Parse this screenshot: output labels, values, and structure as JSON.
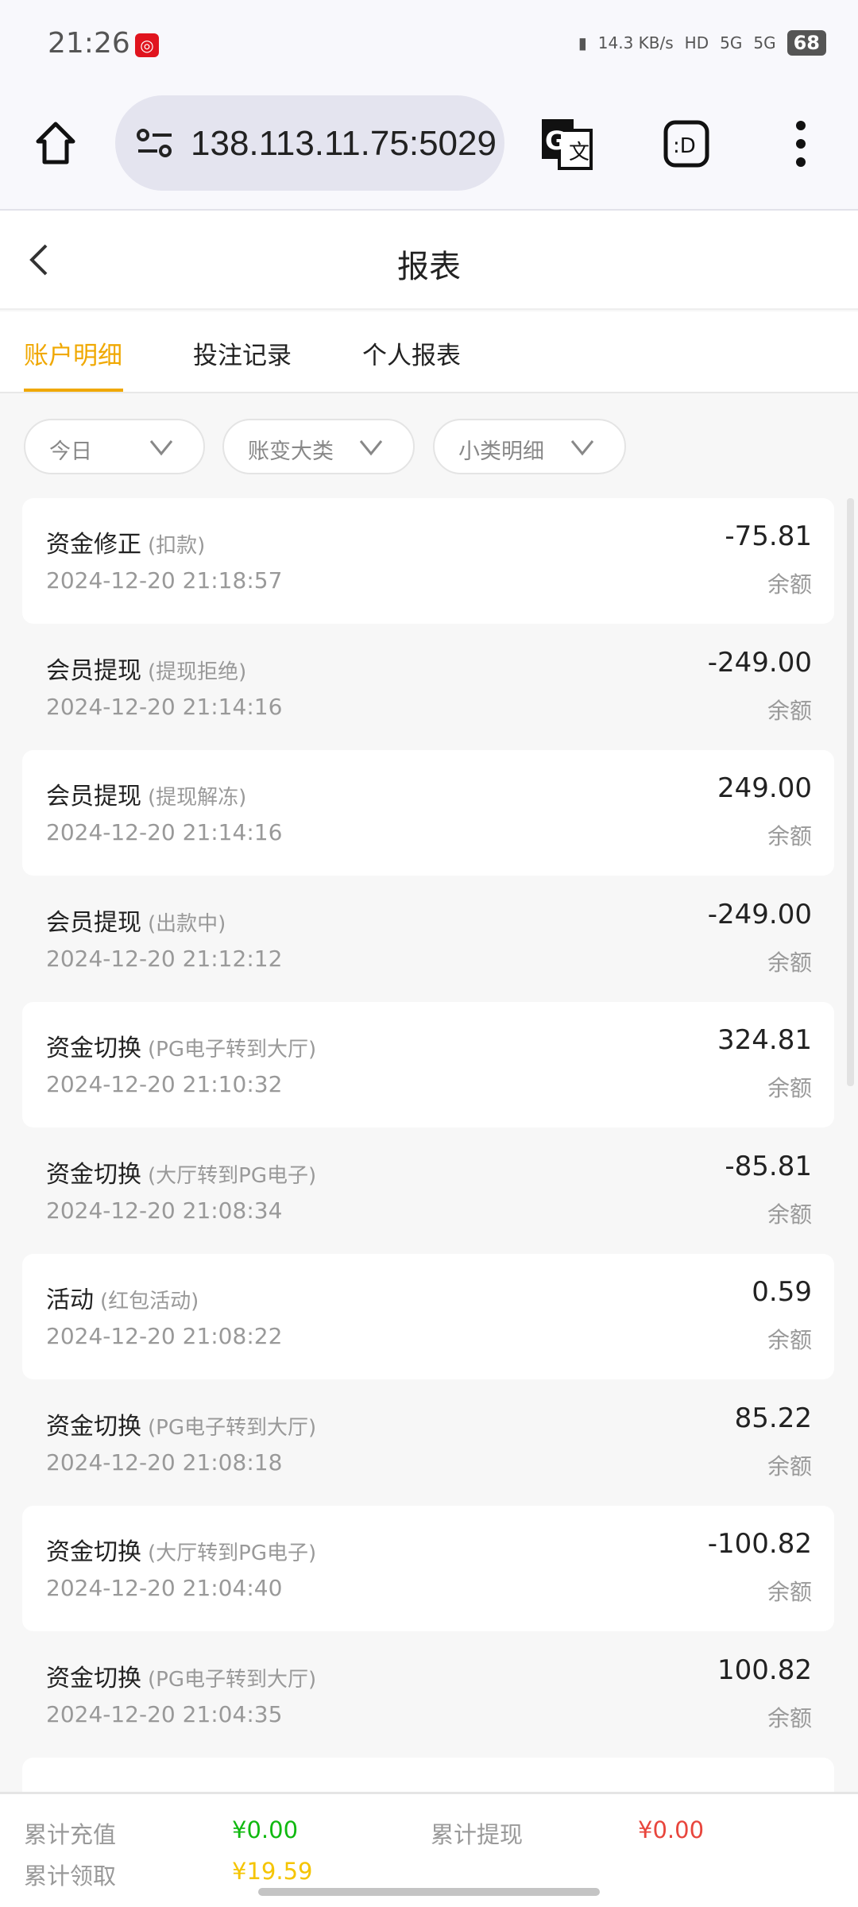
{
  "status_bar": {
    "time": "21:26",
    "net_speed": "14.3 KB/s",
    "battery": "68",
    "signal1": "5G",
    "signal2": "5G"
  },
  "browser": {
    "url": "138.113.11.75:5029",
    "icons": [
      "home-icon",
      "site-settings-icon",
      "translate-icon",
      "extension-icon",
      "more-icon"
    ]
  },
  "header": {
    "title": "报表"
  },
  "tabs": [
    {
      "label": "账户明细",
      "active": true
    },
    {
      "label": "投注记录"
    },
    {
      "label": "个人报表"
    }
  ],
  "filters": [
    {
      "label": "今日"
    },
    {
      "label": "账变大类"
    },
    {
      "label": "小类明细"
    }
  ],
  "items": [
    {
      "title": "资金修正",
      "sub": "(扣款)",
      "date": "2024-12-20 21:18:57",
      "amount": "-75.81",
      "balance": "余额"
    },
    {
      "title": "会员提现",
      "sub": "(提现拒绝)",
      "date": "2024-12-20 21:14:16",
      "amount": "-249.00",
      "balance": "余额"
    },
    {
      "title": "会员提现",
      "sub": "(提现解冻)",
      "date": "2024-12-20 21:14:16",
      "amount": "249.00",
      "balance": "余额"
    },
    {
      "title": "会员提现",
      "sub": "(出款中)",
      "date": "2024-12-20 21:12:12",
      "amount": "-249.00",
      "balance": "余额"
    },
    {
      "title": "资金切换",
      "sub": "(PG电子转到大厅)",
      "date": "2024-12-20 21:10:32",
      "amount": "324.81",
      "balance": "余额"
    },
    {
      "title": "资金切换",
      "sub": "(大厅转到PG电子)",
      "date": "2024-12-20 21:08:34",
      "amount": "-85.81",
      "balance": "余额"
    },
    {
      "title": "活动",
      "sub": "(红包活动)",
      "date": "2024-12-20 21:08:22",
      "amount": "0.59",
      "balance": "余额"
    },
    {
      "title": "资金切换",
      "sub": "(PG电子转到大厅)",
      "date": "2024-12-20 21:08:18",
      "amount": "85.22",
      "balance": "余额"
    },
    {
      "title": "资金切换",
      "sub": "(大厅转到PG电子)",
      "date": "2024-12-20 21:04:40",
      "amount": "-100.82",
      "balance": "余额"
    },
    {
      "title": "资金切换",
      "sub": "(PG电子转到大厅)",
      "date": "2024-12-20 21:04:35",
      "amount": "100.82",
      "balance": "余额"
    }
  ],
  "footer": {
    "recharge_label": "累计充值",
    "recharge_value": "¥0.00",
    "withdraw_label": "累计提现",
    "withdraw_value": "¥0.00",
    "claim_label": "累计领取",
    "claim_value": "¥19.59"
  },
  "colors": {
    "accent": "#f0a800",
    "green": "#10b910",
    "red": "#e8453c",
    "yellow": "#f5c400"
  }
}
